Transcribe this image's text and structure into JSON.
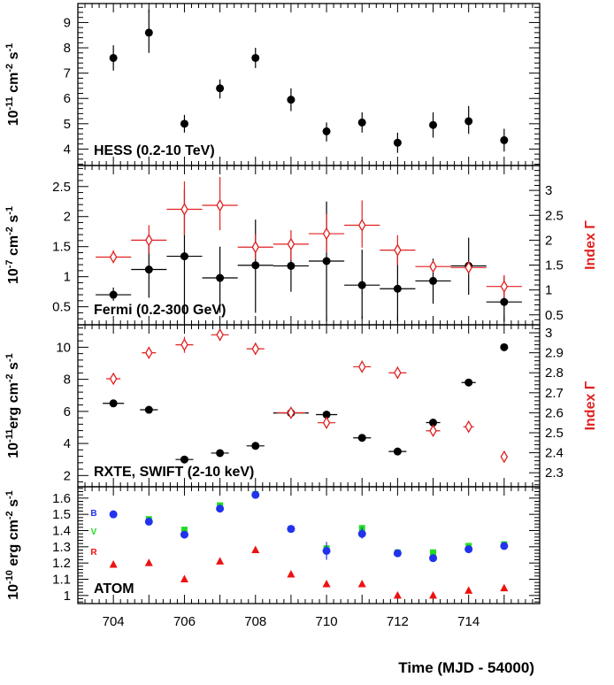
{
  "chart_data": [
    {
      "type": "scatter",
      "panel_label": "HESS (0.2-10 TeV)",
      "ylabel": {
        "base": "10",
        "exp": "-11",
        "rest": " cm",
        "exp2": "-2",
        "rest2": " s",
        "exp3": "-1"
      },
      "ylim": [
        3.35,
        9.75
      ],
      "yticks": [
        4,
        5,
        6,
        7,
        8,
        9
      ],
      "series": [
        {
          "color": "#000000",
          "marker": "filled-circle",
          "axis": "left",
          "points": [
            {
              "x": 704,
              "y": 7.6,
              "ylo": 7.1,
              "yhi": 8.1
            },
            {
              "x": 705,
              "y": 8.6,
              "ylo": 7.8,
              "yhi": 9.5
            },
            {
              "x": 706,
              "y": 5.0,
              "ylo": 4.65,
              "yhi": 5.35
            },
            {
              "x": 707,
              "y": 6.4,
              "ylo": 6.0,
              "yhi": 6.75
            },
            {
              "x": 708,
              "y": 7.6,
              "ylo": 7.2,
              "yhi": 8.0
            },
            {
              "x": 709,
              "y": 5.95,
              "ylo": 5.5,
              "yhi": 6.4
            },
            {
              "x": 710,
              "y": 4.7,
              "ylo": 4.3,
              "yhi": 5.05
            },
            {
              "x": 711,
              "y": 5.05,
              "ylo": 4.65,
              "yhi": 5.45
            },
            {
              "x": 712,
              "y": 4.25,
              "ylo": 3.85,
              "yhi": 4.65
            },
            {
              "x": 713,
              "y": 4.95,
              "ylo": 4.45,
              "yhi": 5.45
            },
            {
              "x": 714,
              "y": 5.1,
              "ylo": 4.6,
              "yhi": 5.7
            },
            {
              "x": 715,
              "y": 4.35,
              "ylo": 3.9,
              "yhi": 4.8
            }
          ]
        }
      ]
    },
    {
      "type": "scatter",
      "panel_label": "Fermi (0.2-300 GeV)",
      "ylabel": {
        "base": "10",
        "exp": "-7",
        "rest": " cm",
        "exp2": "-2",
        "rest2": " s",
        "exp3": "-1"
      },
      "ylabel_right": "Index Γ",
      "ylim": [
        0.2,
        2.85
      ],
      "yticks": [
        0.5,
        1,
        1.5,
        2,
        2.5
      ],
      "ylim_right": [
        0.3,
        3.5
      ],
      "yticks_right": [
        0.5,
        1,
        1.5,
        2,
        2.5,
        3
      ],
      "series": [
        {
          "color": "#000000",
          "marker": "filled-circle",
          "axis": "left",
          "points": [
            {
              "x": 704,
              "y": 0.7,
              "ylo": 0.6,
              "yhi": 0.82,
              "xlo": 703.5,
              "xhi": 704.5
            },
            {
              "x": 705,
              "y": 1.12,
              "ylo": 0.65,
              "yhi": 1.6,
              "xlo": 704.5,
              "xhi": 705.5
            },
            {
              "x": 706,
              "y": 1.34,
              "ylo": 0.22,
              "yhi": 2.45,
              "xlo": 705.5,
              "xhi": 706.5
            },
            {
              "x": 707,
              "y": 0.98,
              "ylo": 0.4,
              "yhi": 1.5,
              "xlo": 706.5,
              "xhi": 707.5
            },
            {
              "x": 708,
              "y": 1.19,
              "ylo": 0.4,
              "yhi": 1.95,
              "xlo": 707.5,
              "xhi": 708.5
            },
            {
              "x": 709,
              "y": 1.18,
              "ylo": 0.75,
              "yhi": 1.6,
              "xlo": 708.5,
              "xhi": 709.5
            },
            {
              "x": 710,
              "y": 1.26,
              "ylo": 0.25,
              "yhi": 2.25,
              "xlo": 709.5,
              "xhi": 710.5
            },
            {
              "x": 711,
              "y": 0.86,
              "ylo": 0.3,
              "yhi": 1.45,
              "xlo": 710.5,
              "xhi": 711.5
            },
            {
              "x": 712,
              "y": 0.8,
              "ylo": 0.25,
              "yhi": 1.35,
              "xlo": 711.5,
              "xhi": 712.5
            },
            {
              "x": 713,
              "y": 0.93,
              "ylo": 0.55,
              "yhi": 1.3,
              "xlo": 712.5,
              "xhi": 713.5
            },
            {
              "x": 714,
              "y": 1.18,
              "ylo": 0.7,
              "yhi": 1.65,
              "xlo": 713.5,
              "xhi": 714.5
            },
            {
              "x": 715,
              "y": 0.58,
              "ylo": 0.25,
              "yhi": 1.0,
              "xlo": 714.5,
              "xhi": 715.5
            }
          ]
        },
        {
          "color": "#e02020",
          "marker": "open-diamond",
          "axis": "right",
          "points": [
            {
              "x": 704,
              "y": 1.66,
              "ylo": 1.54,
              "yhi": 1.8,
              "xlo": 703.5,
              "xhi": 704.5
            },
            {
              "x": 705,
              "y": 2.0,
              "ylo": 1.73,
              "yhi": 2.3,
              "xlo": 704.5,
              "xhi": 705.5
            },
            {
              "x": 706,
              "y": 2.62,
              "ylo": 2.1,
              "yhi": 3.18,
              "xlo": 705.5,
              "xhi": 706.5
            },
            {
              "x": 707,
              "y": 2.7,
              "ylo": 2.2,
              "yhi": 3.27,
              "xlo": 706.5,
              "xhi": 707.5
            },
            {
              "x": 708,
              "y": 1.86,
              "ylo": 1.62,
              "yhi": 2.12,
              "xlo": 707.5,
              "xhi": 708.5
            },
            {
              "x": 709,
              "y": 1.92,
              "ylo": 1.6,
              "yhi": 2.2,
              "xlo": 708.5,
              "xhi": 709.5
            },
            {
              "x": 710,
              "y": 2.13,
              "ylo": 1.75,
              "yhi": 2.53,
              "xlo": 709.5,
              "xhi": 710.5
            },
            {
              "x": 711,
              "y": 2.3,
              "ylo": 1.85,
              "yhi": 2.8,
              "xlo": 710.5,
              "xhi": 711.5
            },
            {
              "x": 712,
              "y": 1.8,
              "ylo": 1.5,
              "yhi": 2.1,
              "xlo": 711.5,
              "xhi": 712.5
            },
            {
              "x": 713,
              "y": 1.47,
              "ylo": 1.37,
              "yhi": 1.58,
              "xlo": 712.5,
              "xhi": 713.5
            },
            {
              "x": 714,
              "y": 1.45,
              "ylo": 1.35,
              "yhi": 1.55,
              "xlo": 713.5,
              "xhi": 714.5
            },
            {
              "x": 715,
              "y": 1.07,
              "ylo": 0.85,
              "yhi": 1.3,
              "xlo": 714.5,
              "xhi": 715.5
            }
          ]
        }
      ]
    },
    {
      "type": "scatter",
      "panel_label": "RXTE, SWIFT (2-10 keV)",
      "ylabel": {
        "base": "10",
        "exp": "-11",
        "rest": "erg cm",
        "exp2": "-2",
        "rest2": " s",
        "exp3": "-1"
      },
      "ylabel_right": "Index Γ",
      "ylim": [
        1.3,
        11.4
      ],
      "yticks": [
        2,
        4,
        6,
        8,
        10
      ],
      "ylim_right": [
        2.23,
        3.04
      ],
      "yticks_right": [
        2.3,
        2.4,
        2.5,
        2.6,
        2.7,
        2.8,
        2.9,
        3
      ],
      "series": [
        {
          "color": "#000000",
          "marker": "filled-circle",
          "axis": "left",
          "points": [
            {
              "x": 704,
              "y": 6.5,
              "xlo": 703.7,
              "xhi": 704.3
            },
            {
              "x": 705,
              "y": 6.1,
              "xlo": 704.75,
              "xhi": 705.25
            },
            {
              "x": 706,
              "y": 3.0,
              "xlo": 705.75,
              "xhi": 706.25
            },
            {
              "x": 707,
              "y": 3.4,
              "xlo": 706.75,
              "xhi": 707.25
            },
            {
              "x": 708,
              "y": 3.85,
              "xlo": 707.75,
              "xhi": 708.25
            },
            {
              "x": 709,
              "y": 5.9,
              "xlo": 708.5,
              "xhi": 709.5
            },
            {
              "x": 710,
              "y": 5.8,
              "xlo": 709.7,
              "xhi": 710.3
            },
            {
              "x": 711,
              "y": 4.35,
              "xlo": 710.75,
              "xhi": 711.25
            },
            {
              "x": 712,
              "y": 3.5,
              "xlo": 711.75,
              "xhi": 712.25
            },
            {
              "x": 713,
              "y": 5.3,
              "xlo": 712.8,
              "xhi": 713.2
            },
            {
              "x": 714,
              "y": 7.8,
              "xlo": 713.8,
              "xhi": 714.2
            },
            {
              "x": 715,
              "y": 10.0,
              "xlo": 714.9,
              "xhi": 715.1
            }
          ]
        },
        {
          "color": "#e02020",
          "marker": "open-diamond",
          "axis": "right",
          "points": [
            {
              "x": 704,
              "y": 2.77,
              "ylo": 2.75,
              "yhi": 2.79,
              "xlo": 703.8,
              "xhi": 704.2
            },
            {
              "x": 705,
              "y": 2.9,
              "ylo": 2.88,
              "yhi": 2.92,
              "xlo": 704.8,
              "xhi": 705.2
            },
            {
              "x": 706,
              "y": 2.94,
              "ylo": 2.9,
              "yhi": 2.98,
              "xlo": 705.75,
              "xhi": 706.25
            },
            {
              "x": 707,
              "y": 2.99,
              "ylo": 2.96,
              "yhi": 3.02,
              "xlo": 706.75,
              "xhi": 707.25
            },
            {
              "x": 708,
              "y": 2.92,
              "ylo": 2.89,
              "yhi": 2.95,
              "xlo": 707.75,
              "xhi": 708.25
            },
            {
              "x": 709,
              "y": 2.6,
              "ylo": 2.59,
              "yhi": 2.61,
              "xlo": 708.6,
              "xhi": 709.4
            },
            {
              "x": 710,
              "y": 2.55,
              "ylo": 2.53,
              "yhi": 2.57,
              "xlo": 709.75,
              "xhi": 710.25
            },
            {
              "x": 711,
              "y": 2.83,
              "ylo": 2.81,
              "yhi": 2.86,
              "xlo": 710.75,
              "xhi": 711.25
            },
            {
              "x": 712,
              "y": 2.8,
              "ylo": 2.77,
              "yhi": 2.83,
              "xlo": 711.75,
              "xhi": 712.25
            },
            {
              "x": 713,
              "y": 2.51,
              "ylo": 2.49,
              "yhi": 2.53,
              "xlo": 712.8,
              "xhi": 713.2
            },
            {
              "x": 714,
              "y": 2.53,
              "ylo": 2.52,
              "yhi": 2.54,
              "xlo": 713.85,
              "xhi": 714.15
            },
            {
              "x": 715,
              "y": 2.38,
              "ylo": 2.36,
              "yhi": 2.4,
              "xlo": 714.95,
              "xhi": 715.05
            }
          ]
        }
      ]
    },
    {
      "type": "scatter",
      "panel_label": "ATOM",
      "ylabel": {
        "base": "10",
        "exp": "-10",
        "rest": " erg cm",
        "exp2": "-2",
        "rest2": " s",
        "exp3": "-1"
      },
      "ylim": [
        0.95,
        1.67
      ],
      "yticks": [
        1,
        1.1,
        1.2,
        1.3,
        1.4,
        1.5,
        1.6
      ],
      "xlabel": "Time (MJD - 54000)",
      "xlim": [
        703,
        716
      ],
      "xticks": [
        704,
        706,
        708,
        710,
        712,
        714
      ],
      "legend": [
        "B",
        "V",
        "R"
      ],
      "series": [
        {
          "name": "V",
          "color": "#22dd22",
          "marker": "filled-square",
          "axis": "left",
          "points": [
            {
              "x": 705,
              "y": 1.47
            },
            {
              "x": 706,
              "y": 1.405
            },
            {
              "x": 707,
              "y": 1.555
            },
            {
              "x": 708,
              "y": 1.625
            },
            {
              "x": 709,
              "y": 1.41
            },
            {
              "x": 710,
              "y": 1.29
            },
            {
              "x": 711,
              "y": 1.415
            },
            {
              "x": 712,
              "y": 1.265
            },
            {
              "x": 713,
              "y": 1.265
            },
            {
              "x": 714,
              "y": 1.305
            },
            {
              "x": 715,
              "y": 1.315
            }
          ]
        },
        {
          "name": "B",
          "color": "#2233ee",
          "marker": "filled-circle",
          "axis": "left",
          "points": [
            {
              "x": 704,
              "y": 1.5
            },
            {
              "x": 705,
              "y": 1.455
            },
            {
              "x": 706,
              "y": 1.375
            },
            {
              "x": 707,
              "y": 1.535
            },
            {
              "x": 708,
              "y": 1.62
            },
            {
              "x": 709,
              "y": 1.41
            },
            {
              "x": 710,
              "y": 1.275,
              "ylo": 1.22,
              "yhi": 1.33
            },
            {
              "x": 711,
              "y": 1.38,
              "ylo": 1.35,
              "yhi": 1.42
            },
            {
              "x": 712,
              "y": 1.26
            },
            {
              "x": 713,
              "y": 1.23
            },
            {
              "x": 714,
              "y": 1.285
            },
            {
              "x": 715,
              "y": 1.305
            }
          ]
        },
        {
          "name": "R",
          "color": "#ee1111",
          "marker": "filled-triangle",
          "axis": "left",
          "points": [
            {
              "x": 704,
              "y": 1.19
            },
            {
              "x": 705,
              "y": 1.2
            },
            {
              "x": 706,
              "y": 1.1
            },
            {
              "x": 707,
              "y": 1.21
            },
            {
              "x": 708,
              "y": 1.28
            },
            {
              "x": 709,
              "y": 1.13
            },
            {
              "x": 710,
              "y": 1.07,
              "ylo": 1.05,
              "yhi": 1.09
            },
            {
              "x": 711,
              "y": 1.07
            },
            {
              "x": 712,
              "y": 1.0
            },
            {
              "x": 713,
              "y": 1.0
            },
            {
              "x": 714,
              "y": 1.03
            },
            {
              "x": 715,
              "y": 1.045
            }
          ]
        }
      ]
    }
  ]
}
